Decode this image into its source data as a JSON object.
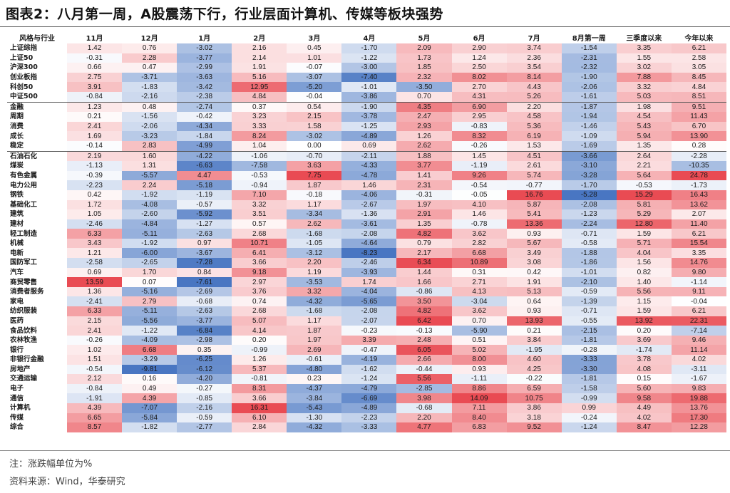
{
  "title": "图表2：八月第一周，A股震荡下行，行业层面计算机、传媒等板块强势",
  "footer": {
    "note": "注：涨跌幅单位为%",
    "source": "资料来源：Wind，华泰研究"
  },
  "colors": {
    "positive": "#e8424a",
    "negative": "#3f6fbf",
    "neutral": "#ffffff"
  },
  "table": {
    "columns": [
      "风格与行业",
      "11月",
      "12月",
      "1月",
      "2月",
      "3月",
      "4月",
      "5月",
      "6月",
      "7月",
      "8月第一周",
      "三季度以来",
      "今年以来"
    ],
    "rows": [
      {
        "name": "上证综指",
        "values": [
          "1.42",
          "0.76",
          "-3.02",
          "2.16",
          "0.45",
          "-1.70",
          "2.09",
          "2.90",
          "3.74",
          "-1.54",
          "3.35",
          "6.21"
        ]
      },
      {
        "name": "上证50",
        "values": [
          "-0.31",
          "2.28",
          "-3.77",
          "2.14",
          "1.01",
          "-1.22",
          "1.73",
          "1.24",
          "2.36",
          "-2.31",
          "1.55",
          "2.58"
        ]
      },
      {
        "name": "沪深300",
        "values": [
          "0.66",
          "0.47",
          "-2.99",
          "1.91",
          "-0.07",
          "-3.00",
          "1.85",
          "2.50",
          "3.54",
          "-2.32",
          "3.02",
          "3.05"
        ]
      },
      {
        "name": "创业板指",
        "values": [
          "2.75",
          "-3.71",
          "-3.63",
          "5.16",
          "-3.07",
          "-7.40",
          "2.32",
          "8.02",
          "8.14",
          "-1.90",
          "7.88",
          "8.45"
        ]
      },
      {
        "name": "科创50",
        "values": [
          "3.91",
          "-1.83",
          "-3.42",
          "12.95",
          "-5.20",
          "-1.01",
          "-3.50",
          "2.70",
          "4.43",
          "-2.06",
          "3.32",
          "4.84"
        ]
      },
      {
        "name": "中证500",
        "values": [
          "-0.84",
          "-2.16",
          "-2.38",
          "4.84",
          "-0.04",
          "-3.86",
          "0.70",
          "4.31",
          "5.26",
          "-1.61",
          "5.03",
          "8.51"
        ],
        "group_end": true
      },
      {
        "name": "金融",
        "values": [
          "1.23",
          "0.48",
          "-2.74",
          "0.37",
          "0.54",
          "-1.90",
          "4.35",
          "6.90",
          "2.20",
          "-1.87",
          "1.98",
          "9.51"
        ]
      },
      {
        "name": "周期",
        "values": [
          "0.21",
          "-1.56",
          "-0.42",
          "3.23",
          "2.15",
          "-3.78",
          "2.47",
          "2.95",
          "4.58",
          "-1.94",
          "4.54",
          "11.43"
        ]
      },
      {
        "name": "消费",
        "values": [
          "2.41",
          "-2.06",
          "-4.34",
          "3.33",
          "1.58",
          "-1.25",
          "2.93",
          "-0.83",
          "5.36",
          "-1.46",
          "5.43",
          "6.70"
        ]
      },
      {
        "name": "成长",
        "values": [
          "1.69",
          "-3.23",
          "-1.84",
          "8.24",
          "-3.02",
          "-4.89",
          "1.26",
          "8.32",
          "6.19",
          "-1.09",
          "5.94",
          "13.90"
        ]
      },
      {
        "name": "稳定",
        "values": [
          "-0.14",
          "2.83",
          "-4.99",
          "1.04",
          "0.00",
          "0.69",
          "2.62",
          "-0.26",
          "1.53",
          "-1.69",
          "1.35",
          "0.28"
        ],
        "group_end": true
      },
      {
        "name": "石油石化",
        "values": [
          "2.19",
          "1.60",
          "-4.22",
          "-1.06",
          "-0.70",
          "-2.11",
          "1.88",
          "1.45",
          "4.51",
          "-3.66",
          "2.64",
          "-2.28"
        ]
      },
      {
        "name": "煤炭",
        "values": [
          "-1.13",
          "1.31",
          "-6.63",
          "-7.58",
          "3.63",
          "-4.33",
          "3.77",
          "-1.19",
          "2.61",
          "-3.10",
          "2.21",
          "-10.35"
        ]
      },
      {
        "name": "有色金属",
        "values": [
          "-0.39",
          "-5.57",
          "4.47",
          "-0.53",
          "7.75",
          "-4.78",
          "1.41",
          "9.26",
          "5.74",
          "-3.28",
          "5.64",
          "24.78"
        ]
      },
      {
        "name": "电力公用",
        "values": [
          "-2.23",
          "2.24",
          "-5.18",
          "-0.94",
          "1.87",
          "1.46",
          "2.31",
          "-0.54",
          "-0.77",
          "-1.70",
          "-0.53",
          "-1.73"
        ]
      },
      {
        "name": "钢铁",
        "values": [
          "0.42",
          "-1.92",
          "-1.19",
          "7.10",
          "-0.18",
          "-4.06",
          "-0.31",
          "-0.05",
          "16.76",
          "-5.28",
          "15.29",
          "16.43"
        ]
      },
      {
        "name": "基础化工",
        "values": [
          "1.72",
          "-4.08",
          "-0.57",
          "3.32",
          "1.17",
          "-2.67",
          "1.97",
          "4.10",
          "5.87",
          "-2.08",
          "5.81",
          "13.62"
        ]
      },
      {
        "name": "建筑",
        "values": [
          "1.05",
          "-2.60",
          "-5.92",
          "3.51",
          "-3.34",
          "-1.36",
          "2.91",
          "1.46",
          "5.41",
          "-1.23",
          "5.29",
          "2.07"
        ]
      },
      {
        "name": "建材",
        "values": [
          "-2.46",
          "-4.84",
          "-1.27",
          "0.57",
          "2.62",
          "-3.61",
          "1.35",
          "-0.78",
          "13.36",
          "-2.24",
          "12.80",
          "11.40"
        ]
      },
      {
        "name": "轻工制造",
        "values": [
          "6.33",
          "-5.11",
          "-2.63",
          "2.68",
          "-1.68",
          "-2.08",
          "4.82",
          "3.62",
          "0.93",
          "-0.71",
          "1.59",
          "6.21"
        ]
      },
      {
        "name": "机械",
        "values": [
          "3.43",
          "-1.92",
          "0.97",
          "10.71",
          "-1.05",
          "-4.64",
          "0.79",
          "2.82",
          "5.67",
          "-0.58",
          "5.71",
          "15.54"
        ]
      },
      {
        "name": "电新",
        "values": [
          "1.21",
          "-6.00",
          "-3.67",
          "6.41",
          "-3.12",
          "-8.23",
          "2.17",
          "6.68",
          "3.49",
          "-1.88",
          "4.04",
          "3.35"
        ]
      },
      {
        "name": "国防军工",
        "values": [
          "-2.58",
          "-2.65",
          "-7.28",
          "3.66",
          "2.20",
          "-2.46",
          "6.34",
          "10.89",
          "3.08",
          "-1.86",
          "1.56",
          "14.76"
        ]
      },
      {
        "name": "汽车",
        "values": [
          "0.69",
          "1.70",
          "0.84",
          "9.18",
          "1.19",
          "-3.93",
          "1.44",
          "0.31",
          "0.42",
          "-1.01",
          "0.82",
          "9.80"
        ]
      },
      {
        "name": "商贸零售",
        "values": [
          "13.59",
          "0.07",
          "-7.61",
          "2.97",
          "-3.53",
          "1.74",
          "1.66",
          "2.71",
          "1.91",
          "-2.10",
          "1.40",
          "-1.14"
        ]
      },
      {
        "name": "消费者服务",
        "values": [
          "1.36",
          "-5.16",
          "-2.69",
          "3.76",
          "3.32",
          "-4.04",
          "-0.86",
          "4.13",
          "5.13",
          "-0.59",
          "5.56",
          "9.11"
        ]
      },
      {
        "name": "家电",
        "values": [
          "-2.41",
          "2.79",
          "-0.68",
          "0.74",
          "-4.32",
          "-5.65",
          "3.50",
          "-3.04",
          "0.64",
          "-1.39",
          "1.15",
          "-0.04"
        ]
      },
      {
        "name": "纺织服装",
        "values": [
          "6.33",
          "-5.11",
          "-2.63",
          "2.68",
          "-1.68",
          "-2.08",
          "4.82",
          "3.62",
          "0.93",
          "-0.71",
          "1.59",
          "6.21"
        ]
      },
      {
        "name": "医药",
        "values": [
          "2.15",
          "-5.56",
          "-3.77",
          "5.07",
          "1.17",
          "-2.07",
          "6.42",
          "0.70",
          "13.93",
          "-0.55",
          "13.92",
          "22.31"
        ]
      },
      {
        "name": "食品饮料",
        "values": [
          "2.41",
          "-1.22",
          "-6.84",
          "4.14",
          "1.87",
          "-0.23",
          "-0.13",
          "-5.90",
          "0.21",
          "-2.15",
          "0.20",
          "-7.14"
        ]
      },
      {
        "name": "农林牧渔",
        "values": [
          "-0.26",
          "-4.09",
          "-2.98",
          "0.20",
          "1.97",
          "3.39",
          "2.48",
          "0.51",
          "3.84",
          "-1.81",
          "3.69",
          "9.46"
        ]
      },
      {
        "name": "银行",
        "values": [
          "1.02",
          "6.68",
          "0.35",
          "-0.99",
          "2.69",
          "-0.47",
          "6.05",
          "5.02",
          "-1.95",
          "-0.28",
          "-1.74",
          "11.14"
        ]
      },
      {
        "name": "非银行金融",
        "values": [
          "1.51",
          "-3.29",
          "-6.25",
          "1.26",
          "-0.61",
          "-4.19",
          "2.66",
          "8.00",
          "4.60",
          "-3.33",
          "3.78",
          "4.02"
        ]
      },
      {
        "name": "房地产",
        "values": [
          "-0.54",
          "-9.81",
          "-6.12",
          "5.37",
          "-4.80",
          "-1.62",
          "-0.44",
          "0.93",
          "4.25",
          "-3.30",
          "4.08",
          "-3.11"
        ]
      },
      {
        "name": "交通运输",
        "values": [
          "2.12",
          "0.16",
          "-4.20",
          "-0.81",
          "0.23",
          "-1.24",
          "5.56",
          "-1.11",
          "-0.22",
          "-1.81",
          "0.15",
          "-1.67"
        ]
      },
      {
        "name": "电子",
        "values": [
          "-0.84",
          "0.49",
          "-0.27",
          "8.31",
          "-4.37",
          "-4.79",
          "-2.85",
          "8.86",
          "6.59",
          "-1.58",
          "5.60",
          "9.83"
        ]
      },
      {
        "name": "通信",
        "values": [
          "-1.91",
          "4.39",
          "-0.85",
          "3.66",
          "-3.84",
          "-6.69",
          "3.98",
          "14.09",
          "10.75",
          "-0.99",
          "9.58",
          "19.88"
        ]
      },
      {
        "name": "计算机",
        "values": [
          "4.39",
          "-7.07",
          "-2.16",
          "16.31",
          "-5.43",
          "-4.89",
          "-0.68",
          "7.11",
          "3.86",
          "0.99",
          "4.49",
          "13.76"
        ]
      },
      {
        "name": "传媒",
        "values": [
          "6.65",
          "-5.84",
          "-0.59",
          "6.10",
          "-1.30",
          "-2.23",
          "2.20",
          "8.40",
          "3.18",
          "-0.24",
          "4.02",
          "17.30"
        ]
      },
      {
        "name": "综合",
        "values": [
          "8.57",
          "-1.82",
          "-2.77",
          "2.84",
          "-4.32",
          "-3.33",
          "4.77",
          "6.83",
          "9.52",
          "-1.24",
          "8.47",
          "12.28"
        ]
      }
    ]
  }
}
